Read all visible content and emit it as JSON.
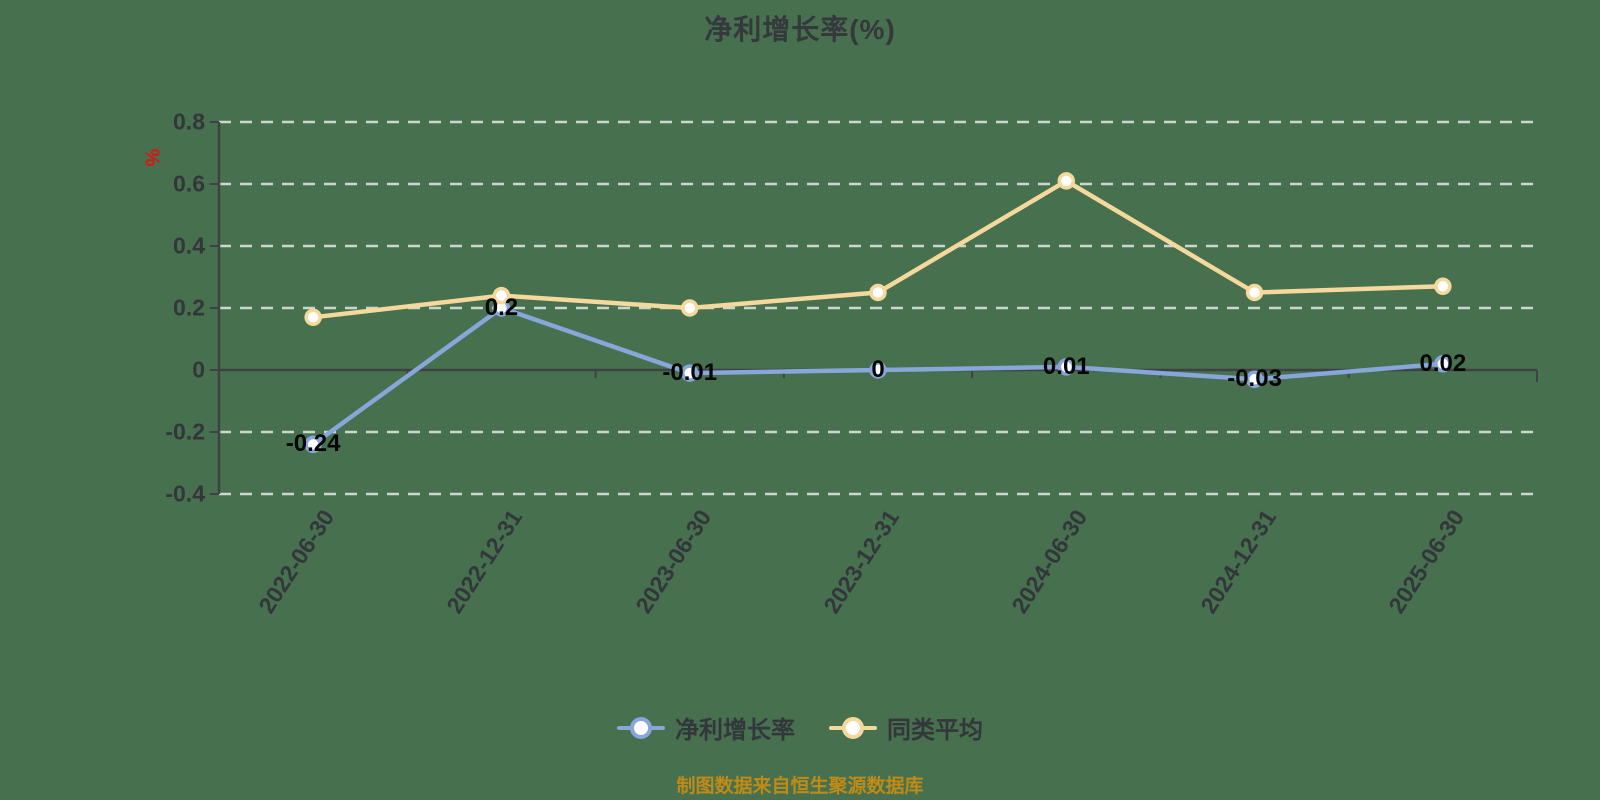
{
  "page": {
    "background": "#47704F"
  },
  "header": {
    "title": "净利增长率(%)"
  },
  "chart_data": {
    "type": "line",
    "title": "净利增长率(%)",
    "categories": [
      "2022-06-30",
      "2022-12-31",
      "2023-06-30",
      "2023-12-31",
      "2024-06-30",
      "2024-12-31",
      "2025-06-30"
    ],
    "series": [
      {
        "name": "净利增长率",
        "color": "#87A6D9",
        "values": [
          -0.24,
          0.2,
          -0.01,
          0,
          0.01,
          -0.03,
          0.02
        ],
        "point_labels": [
          "-0.24",
          "0.2",
          "-0.01",
          "0",
          "0.01",
          "-0.03",
          "0.02"
        ],
        "show_point_labels": true
      },
      {
        "name": "同类平均",
        "color": "#F5D89B",
        "values": [
          0.17,
          0.24,
          0.2,
          0.25,
          0.61,
          0.25,
          0.27
        ],
        "point_labels": null,
        "show_point_labels": false
      }
    ],
    "ylim": [
      -0.4,
      0.8
    ],
    "y_ticks": [
      {
        "value": -0.4,
        "label": "-0.4"
      },
      {
        "value": -0.2,
        "label": "-0.2"
      },
      {
        "value": 0,
        "label": "0"
      },
      {
        "value": 0.2,
        "label": "0.2"
      },
      {
        "value": 0.4,
        "label": "0.4"
      },
      {
        "value": 0.6,
        "label": "0.6"
      },
      {
        "value": 0.8,
        "label": "0.8"
      }
    ],
    "y_unit": {
      "label": "%",
      "color": "#E11212"
    },
    "grid": {
      "horizontal_dashed": true,
      "zero_line_solid": true,
      "vertical_gridlines": false
    },
    "legend_position": "bottom",
    "marker_style": "circle-white-fill"
  },
  "footer": {
    "source_note": "制图数据来自恒生聚源数据库",
    "color": "#BF8B16"
  }
}
